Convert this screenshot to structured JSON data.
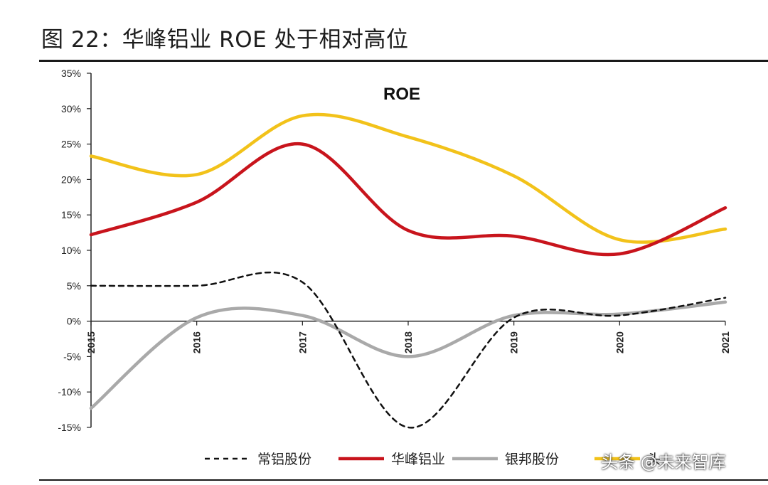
{
  "figure_title": "图 22：华峰铝业 ROE 处于相对高位",
  "watermark": "头条 @未来智库",
  "colors": {
    "series": [
      "#111111",
      "#c8141c",
      "#a9a9a9",
      "#f2c21a"
    ],
    "axis": "#222222"
  },
  "chart_data": {
    "type": "line",
    "title": "ROE",
    "xlabel": "",
    "ylabel": "",
    "x": [
      "2015",
      "2016",
      "2017",
      "2018",
      "2019",
      "2020",
      "2021"
    ],
    "yticks": [
      "35%",
      "30%",
      "25%",
      "20%",
      "15%",
      "10%",
      "5%",
      "0%",
      "-5%",
      "-10%",
      "-15%"
    ],
    "ylim": [
      -15,
      35
    ],
    "grid": false,
    "legend_position": "bottom",
    "series": [
      {
        "name": "常铝股份",
        "values": [
          5.0,
          5.0,
          5.5,
          -15.0,
          0.5,
          0.8,
          3.3
        ],
        "style": "dashed"
      },
      {
        "name": "华峰铝业",
        "values": [
          12.2,
          16.8,
          25.0,
          12.8,
          12.0,
          9.5,
          16.0
        ],
        "style": "solid"
      },
      {
        "name": "银邦股份",
        "values": [
          -12.3,
          0.5,
          0.8,
          -5.0,
          0.8,
          1.0,
          2.7
        ],
        "style": "solid"
      },
      {
        "name": "头",
        "values": [
          23.3,
          20.7,
          29.0,
          26.0,
          20.5,
          11.5,
          13.0
        ],
        "style": "solid"
      }
    ]
  }
}
